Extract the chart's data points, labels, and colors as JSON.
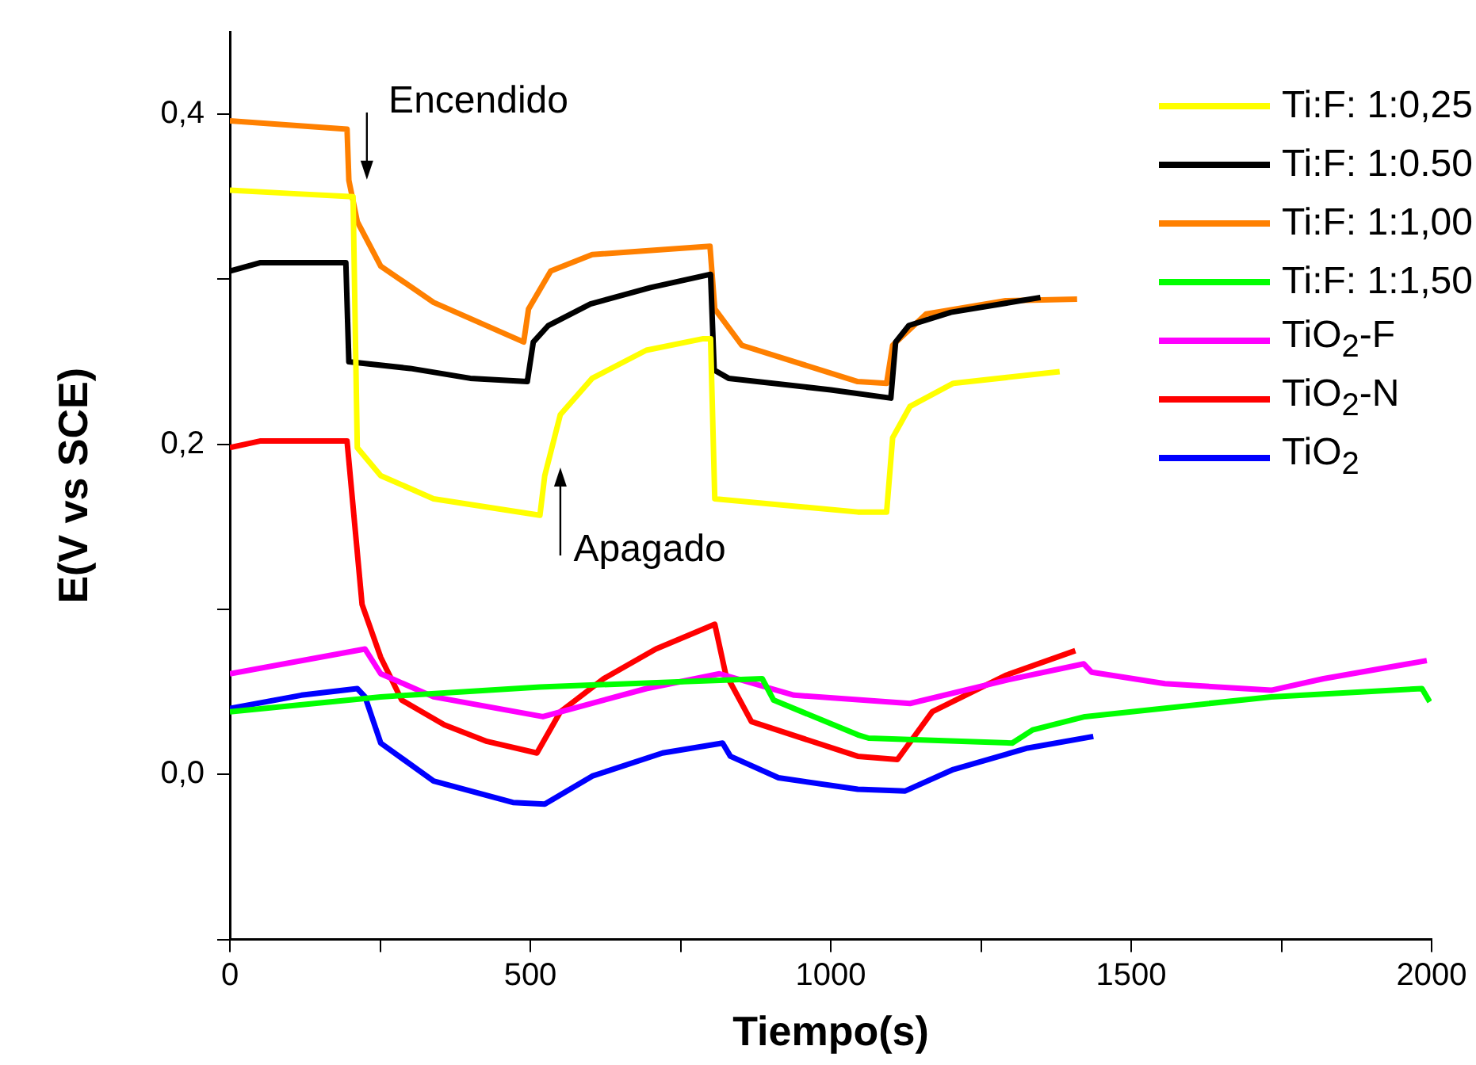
{
  "chart_data": {
    "type": "line",
    "xlabel": "Tiempo(s)",
    "ylabel": "E(V vs SCE)",
    "xlim": [
      0,
      2000
    ],
    "xticks": [
      0,
      {
        "value": 250,
        "label": null
      },
      500,
      {
        "value": 750,
        "label": null
      },
      1000,
      {
        "value": 1250,
        "label": null
      },
      1500,
      {
        "value": 1750,
        "label": null
      },
      2000
    ],
    "ylim": [
      -0.1,
      0.45
    ],
    "yticks": [
      {
        "value": -0.1,
        "label": null
      },
      {
        "value": 0,
        "label": "0,0"
      },
      {
        "value": 0.1,
        "label": null
      },
      {
        "value": 0.2,
        "label": "0,2"
      },
      {
        "value": 0.3,
        "label": null
      },
      {
        "value": 0.4,
        "label": "0,4"
      }
    ],
    "grid": false,
    "legend": "top right",
    "marker": "none",
    "line_style": "solid",
    "annotations": [
      "Encendido",
      "Apagado"
    ],
    "series": [
      {
        "name": "Ti:F: 1:0,25",
        "color": "#ffff00",
        "x": [
          0,
          100,
          205,
          212,
          251,
          339,
          516,
          524,
          550,
          603,
          693,
          788,
          800,
          807,
          1045,
          1093,
          1103,
          1132,
          1204,
          1381
        ],
        "values": [
          0.354,
          0.352,
          0.35,
          0.198,
          0.181,
          0.167,
          0.157,
          0.181,
          0.218,
          0.24,
          0.257,
          0.264,
          0.264,
          0.167,
          0.159,
          0.159,
          0.204,
          0.223,
          0.237,
          0.244
        ]
      },
      {
        "name": "Ti:F: 1:0.50",
        "color": "#000000",
        "x": [
          0,
          50,
          120,
          193,
          198,
          300,
          400,
          495,
          505,
          530,
          600,
          700,
          800,
          806,
          830,
          1000,
          1100,
          1108,
          1130,
          1200,
          1349
        ],
        "values": [
          0.305,
          0.31,
          0.31,
          0.31,
          0.25,
          0.246,
          0.24,
          0.238,
          0.262,
          0.272,
          0.285,
          0.295,
          0.303,
          0.245,
          0.24,
          0.233,
          0.228,
          0.262,
          0.272,
          0.28,
          0.289
        ]
      },
      {
        "name": "Ti:F: 1:1,00",
        "color": "#ff8000",
        "x": [
          0,
          195,
          198,
          212,
          251,
          339,
          489,
          497,
          534,
          603,
          799,
          807,
          852,
          1045,
          1093,
          1103,
          1159,
          1291,
          1410
        ],
        "values": [
          0.396,
          0.391,
          0.36,
          0.335,
          0.308,
          0.286,
          0.262,
          0.282,
          0.305,
          0.315,
          0.32,
          0.282,
          0.26,
          0.238,
          0.237,
          0.26,
          0.279,
          0.287,
          0.288
        ]
      },
      {
        "name": "Ti:F: 1:1,50",
        "color": "#00ff00",
        "x": [
          0,
          251,
          516,
          886,
          905,
          1045,
          1063,
          1302,
          1336,
          1423,
          1733,
          1984,
          1997
        ],
        "values": [
          0.038,
          0.047,
          0.053,
          0.058,
          0.045,
          0.024,
          0.022,
          0.019,
          0.027,
          0.035,
          0.047,
          0.052,
          0.044
        ]
      },
      {
        "name": "TiO$_{2}$-F",
        "color": "#ff00ff",
        "x": [
          0,
          225,
          251,
          339,
          521,
          693,
          815,
          939,
          1132,
          1291,
          1421,
          1434,
          1556,
          1733,
          1820,
          1992
        ],
        "values": [
          0.061,
          0.076,
          0.061,
          0.047,
          0.035,
          0.052,
          0.061,
          0.048,
          0.043,
          0.057,
          0.067,
          0.062,
          0.055,
          0.051,
          0.058,
          0.069
        ]
      },
      {
        "name": "TiO$_{2}$-N",
        "color": "#ff0000",
        "x": [
          0,
          50,
          195,
          220,
          251,
          286,
          357,
          428,
          511,
          550,
          622,
          709,
          807,
          825,
          868,
          1045,
          1111,
          1169,
          1291,
          1407
        ],
        "values": [
          0.198,
          0.202,
          0.202,
          0.103,
          0.071,
          0.045,
          0.03,
          0.02,
          0.013,
          0.038,
          0.058,
          0.076,
          0.091,
          0.061,
          0.032,
          0.011,
          0.009,
          0.038,
          0.06,
          0.075
        ]
      },
      {
        "name": "TiO$_{2}$",
        "color": "#0000ff",
        "x": [
          0,
          119,
          212,
          225,
          251,
          339,
          471,
          524,
          603,
          720,
          820,
          833,
          913,
          1045,
          1124,
          1204,
          1328,
          1437
        ],
        "values": [
          0.04,
          0.048,
          0.052,
          0.047,
          0.019,
          -0.004,
          -0.017,
          -0.018,
          -0.001,
          0.013,
          0.019,
          0.011,
          -0.002,
          -0.009,
          -0.01,
          0.003,
          0.016,
          0.023
        ]
      }
    ]
  }
}
